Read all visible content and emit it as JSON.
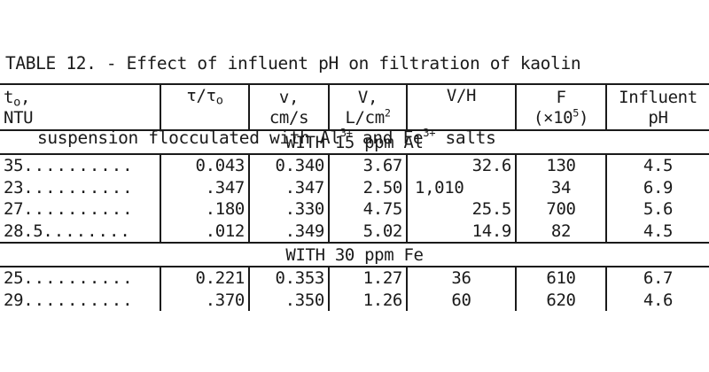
{
  "caption": {
    "line1": "TABLE 12. - Effect of influent pH on filtration of kaolin",
    "line2_pre": "suspension flocculated with Al",
    "sup1": "3+",
    "line2_mid": " and Fe",
    "sup2": "3+",
    "line2_post": " salts"
  },
  "headers": {
    "to_main": "t",
    "to_sub": "o",
    "to_comma": ",",
    "to_unit": "NTU",
    "tau_a": "τ/τ",
    "tau_sub": "o",
    "v_main": "v,",
    "v_unit": "cm/s",
    "V_main": "V,",
    "V_unit_pre": "L/cm",
    "V_unit_sup": "2",
    "VH": "V/H",
    "F_main": "F",
    "F_unit_pre": "(×10",
    "F_unit_sup": "5",
    "F_unit_post": ")",
    "pH_main": "Influent",
    "pH_unit": "pH"
  },
  "sections": [
    {
      "title": "WITH 15 ppm Al",
      "rows": [
        {
          "to": "35",
          "dots": "..........",
          "tau": "0.043",
          "v": "0.340",
          "V": "3.67",
          "VH": "32.6",
          "F": "130",
          "pH": "4.5"
        },
        {
          "to": "23",
          "dots": "..........",
          "tau": ".347",
          "v": ".347",
          "V": "2.50",
          "VH": "1,010",
          "F": "34",
          "pH": "6.9"
        },
        {
          "to": "27",
          "dots": "..........",
          "tau": ".180",
          "v": ".330",
          "V": "4.75",
          "VH": "25.5",
          "F": "700",
          "pH": "5.6"
        },
        {
          "to": "28.5",
          "dots": "........",
          "tau": ".012",
          "v": ".349",
          "V": "5.02",
          "VH": "14.9",
          "F": "82",
          "pH": "4.5"
        }
      ]
    },
    {
      "title": "WITH 30 ppm Fe",
      "rows": [
        {
          "to": "25",
          "dots": "..........",
          "tau": "0.221",
          "v": "0.353",
          "V": "1.27",
          "VH": "36",
          "F": "610",
          "pH": "6.7"
        },
        {
          "to": "29",
          "dots": "..........",
          "tau": ".370",
          "v": ".350",
          "V": "1.26",
          "VH": "60",
          "F": "620",
          "pH": "4.6"
        }
      ]
    }
  ]
}
